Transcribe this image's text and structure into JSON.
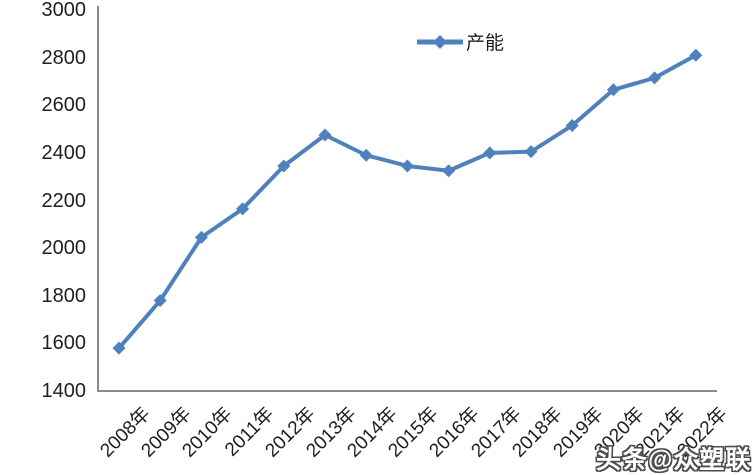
{
  "chart_data": {
    "type": "line",
    "title": "",
    "xlabel": "",
    "ylabel": "",
    "categories": [
      "2008年",
      "2009年",
      "2010年",
      "2011年",
      "2012年",
      "2013年",
      "2014年",
      "2015年",
      "2016年",
      "2017年",
      "2018年",
      "2019年",
      "2020年",
      "2021年",
      "2022年"
    ],
    "series": [
      {
        "name": "产能",
        "values": [
          1580,
          1780,
          2045,
          2165,
          2345,
          2475,
          2390,
          2345,
          2325,
          2400,
          2405,
          2515,
          2665,
          2715,
          2810
        ]
      }
    ],
    "ylim": [
      1400,
      3000
    ],
    "yticks": [
      3000,
      2800,
      2600,
      2400,
      2200,
      2000,
      1800,
      1600,
      1400
    ],
    "grid": false,
    "legend_position": "top-center",
    "marker": "diamond"
  },
  "legend": {
    "label": "产能"
  },
  "watermark": {
    "text": "头条@众塑联"
  },
  "colors": {
    "line": "#4F81BD",
    "axis": "#8a8a8a",
    "text": "#1f1f1f",
    "background": "#ffffff"
  }
}
